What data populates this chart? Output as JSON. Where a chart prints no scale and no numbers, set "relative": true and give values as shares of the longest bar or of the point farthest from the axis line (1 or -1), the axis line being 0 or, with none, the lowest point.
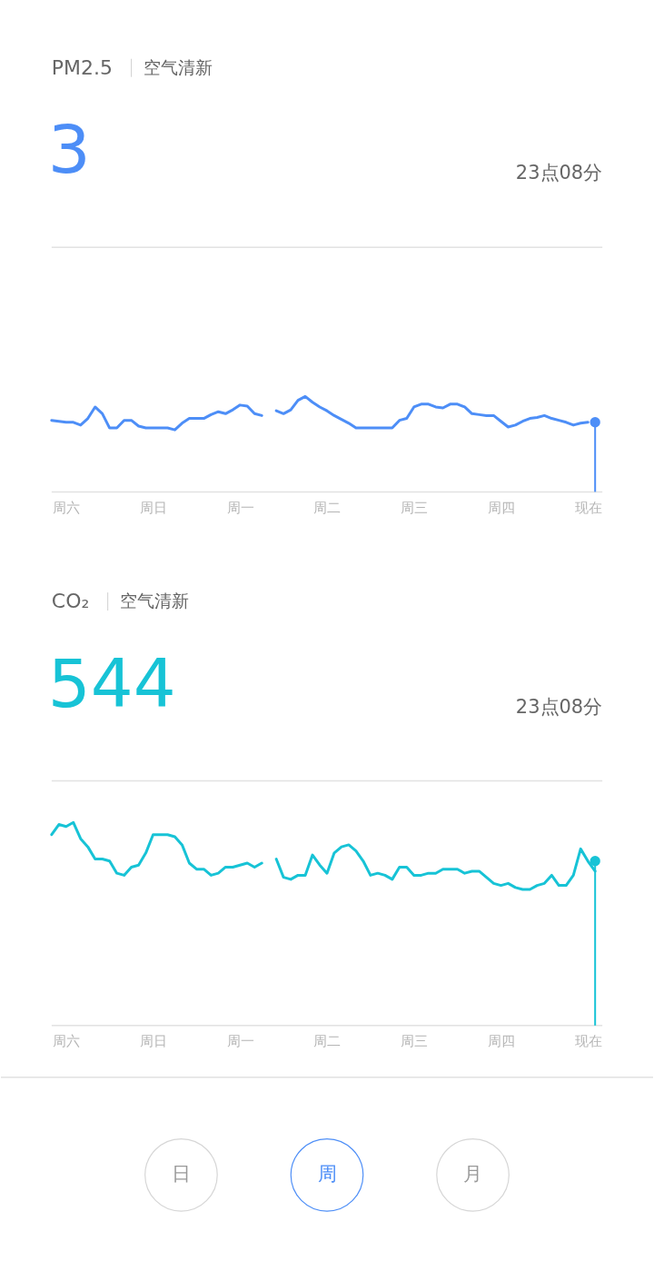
{
  "chart_data": [
    {
      "type": "line",
      "title": "PM2.5",
      "subtitle": "空气清新",
      "annotations": [
        "3",
        "23点08分"
      ],
      "relative": true,
      "tick_labels": "x",
      "grid": false,
      "categories": [
        null,
        null,
        "周六",
        null,
        null,
        null,
        null,
        null,
        null,
        null,
        null,
        null,
        null,
        null,
        "周日",
        null,
        null,
        null,
        null,
        null,
        null,
        null,
        null,
        null,
        null,
        null,
        "周一",
        null,
        null,
        null,
        null,
        null,
        null,
        null,
        null,
        null,
        null,
        null,
        "周二",
        null,
        null,
        null,
        null,
        null,
        null,
        null,
        null,
        null,
        null,
        null,
        "周三",
        null,
        null,
        null,
        null,
        null,
        null,
        null,
        null,
        null,
        null,
        null,
        "周四",
        null,
        null,
        null,
        null,
        null,
        null,
        null,
        null,
        null,
        null,
        null,
        "现在",
        null
      ],
      "series": [
        {
          "type": "line",
          "color": "#4d8ef7",
          "values": [
            0.75,
            0.74,
            0.73,
            0.73,
            0.7,
            0.77,
            0.89,
            0.82,
            0.67,
            0.67,
            0.75,
            0.75,
            0.69,
            0.67,
            0.67,
            0.67,
            0.67,
            0.65,
            0.72,
            0.77,
            0.77,
            0.77,
            0.81,
            0.84,
            0.82,
            0.86,
            0.91,
            0.9,
            0.82,
            0.8,
            null,
            0.85,
            0.82,
            0.86,
            0.96,
            1.0,
            0.94,
            0.89,
            0.85,
            0.8,
            0.76,
            0.72,
            0.67,
            0.67,
            0.67,
            0.67,
            0.67,
            0.67,
            0.75,
            0.77,
            0.89,
            0.92,
            0.92,
            0.89,
            0.88,
            0.92,
            0.92,
            0.89,
            0.82,
            0.81,
            0.8,
            0.8,
            0.74,
            0.68,
            0.7,
            0.74,
            0.77,
            0.78,
            0.8,
            0.77,
            0.75,
            0.73,
            0.7,
            0.72,
            0.73,
            null
          ]
        },
        {
          "type": "lollipop",
          "color": "#4d8ef7",
          "values": [
            null,
            null,
            null,
            null,
            null,
            null,
            null,
            null,
            null,
            null,
            null,
            null,
            null,
            null,
            null,
            null,
            null,
            null,
            null,
            null,
            null,
            null,
            null,
            null,
            null,
            null,
            null,
            null,
            null,
            null,
            null,
            null,
            null,
            null,
            null,
            null,
            null,
            null,
            null,
            null,
            null,
            null,
            null,
            null,
            null,
            null,
            null,
            null,
            null,
            null,
            null,
            null,
            null,
            null,
            null,
            null,
            null,
            null,
            null,
            null,
            null,
            null,
            null,
            null,
            null,
            null,
            null,
            null,
            null,
            null,
            null,
            null,
            null,
            null,
            null,
            0.73
          ]
        }
      ]
    },
    {
      "type": "line",
      "title": "CO₂",
      "subtitle": "空气清新",
      "annotations": [
        "544",
        "23点08分"
      ],
      "relative": true,
      "tick_labels": "x",
      "grid": false,
      "categories": [
        null,
        null,
        "周六",
        null,
        null,
        null,
        null,
        null,
        null,
        null,
        null,
        null,
        null,
        null,
        "周日",
        null,
        null,
        null,
        null,
        null,
        null,
        null,
        null,
        null,
        null,
        null,
        "周一",
        null,
        null,
        null,
        null,
        null,
        null,
        null,
        null,
        null,
        null,
        null,
        "周二",
        null,
        null,
        null,
        null,
        null,
        null,
        null,
        null,
        null,
        null,
        null,
        "周三",
        null,
        null,
        null,
        null,
        null,
        null,
        null,
        null,
        null,
        null,
        null,
        "周四",
        null,
        null,
        null,
        null,
        null,
        null,
        null,
        null,
        null,
        null,
        null,
        "现在",
        null
      ],
      "series": [
        {
          "type": "line",
          "color": "#17c3d6",
          "values": [
            0.94,
            0.99,
            0.98,
            1.0,
            0.92,
            0.88,
            0.82,
            0.82,
            0.81,
            0.75,
            0.74,
            0.78,
            0.79,
            0.85,
            0.94,
            0.94,
            0.94,
            0.93,
            0.89,
            0.8,
            0.77,
            0.77,
            0.74,
            0.75,
            0.78,
            0.78,
            0.79,
            0.8,
            0.78,
            0.8,
            null,
            0.82,
            0.73,
            0.72,
            0.74,
            0.74,
            0.84,
            0.79,
            0.75,
            0.85,
            0.88,
            0.89,
            0.86,
            0.81,
            0.74,
            0.75,
            0.74,
            0.72,
            0.78,
            0.78,
            0.74,
            0.74,
            0.75,
            0.75,
            0.77,
            0.77,
            0.77,
            0.75,
            0.76,
            0.76,
            0.73,
            0.7,
            0.69,
            0.7,
            0.68,
            0.67,
            0.67,
            0.69,
            0.7,
            0.74,
            0.69,
            0.69,
            0.74,
            0.87,
            0.81,
            0.76
          ]
        },
        {
          "type": "lollipop",
          "color": "#17c3d6",
          "values": [
            null,
            null,
            null,
            null,
            null,
            null,
            null,
            null,
            null,
            null,
            null,
            null,
            null,
            null,
            null,
            null,
            null,
            null,
            null,
            null,
            null,
            null,
            null,
            null,
            null,
            null,
            null,
            null,
            null,
            null,
            null,
            null,
            null,
            null,
            null,
            null,
            null,
            null,
            null,
            null,
            null,
            null,
            null,
            null,
            null,
            null,
            null,
            null,
            null,
            null,
            null,
            null,
            null,
            null,
            null,
            null,
            null,
            null,
            null,
            null,
            null,
            null,
            null,
            null,
            null,
            null,
            null,
            null,
            null,
            null,
            null,
            null,
            null,
            null,
            null,
            0.81
          ]
        }
      ]
    },
    {
      "type": "other",
      "annotations": [
        "日",
        "周",
        "月"
      ]
    }
  ]
}
